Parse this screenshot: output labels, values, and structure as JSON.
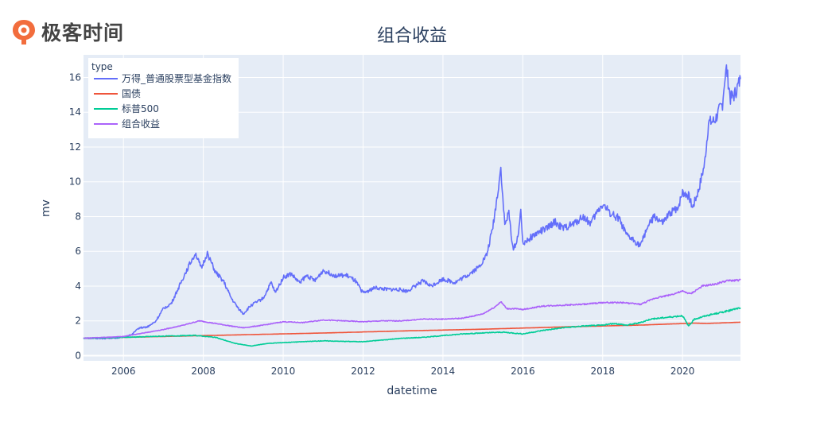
{
  "logo": {
    "text": "极客时间",
    "icon": "geektime-logo-icon",
    "color": "#f26d3d"
  },
  "chart_data": {
    "type": "line",
    "title": "组合收益",
    "xlabel": "datetime",
    "ylabel": "mv",
    "legend_title": "type",
    "legend_position": "top-left",
    "grid": true,
    "xlim": [
      2005.0,
      2021.45
    ],
    "ylim": [
      -0.3,
      17.3
    ],
    "x_ticks": [
      {
        "value": 2006,
        "label": "2006"
      },
      {
        "value": 2008,
        "label": "2008"
      },
      {
        "value": 2010,
        "label": "2010"
      },
      {
        "value": 2012,
        "label": "2012"
      },
      {
        "value": 2014,
        "label": "2014"
      },
      {
        "value": 2016,
        "label": "2016"
      },
      {
        "value": 2018,
        "label": "2018"
      },
      {
        "value": 2020,
        "label": "2020"
      }
    ],
    "y_ticks": [
      {
        "value": 0,
        "label": "0"
      },
      {
        "value": 2,
        "label": "2"
      },
      {
        "value": 4,
        "label": "4"
      },
      {
        "value": 6,
        "label": "6"
      },
      {
        "value": 8,
        "label": "8"
      },
      {
        "value": 10,
        "label": "10"
      },
      {
        "value": 12,
        "label": "12"
      },
      {
        "value": 14,
        "label": "14"
      },
      {
        "value": 16,
        "label": "16"
      }
    ],
    "series": [
      {
        "name": "万得_普通股票型基金指数",
        "color": "#636efa",
        "points": [
          [
            2005.0,
            1.0
          ],
          [
            2005.5,
            0.98
          ],
          [
            2005.9,
            1.02
          ],
          [
            2006.2,
            1.2
          ],
          [
            2006.4,
            1.6
          ],
          [
            2006.6,
            1.65
          ],
          [
            2006.8,
            1.95
          ],
          [
            2007.0,
            2.7
          ],
          [
            2007.2,
            3.0
          ],
          [
            2007.4,
            4.0
          ],
          [
            2007.6,
            5.0
          ],
          [
            2007.8,
            5.9
          ],
          [
            2007.95,
            5.0
          ],
          [
            2008.1,
            5.9
          ],
          [
            2008.3,
            4.8
          ],
          [
            2008.5,
            4.3
          ],
          [
            2008.7,
            3.3
          ],
          [
            2008.85,
            2.8
          ],
          [
            2009.0,
            2.4
          ],
          [
            2009.2,
            2.9
          ],
          [
            2009.5,
            3.3
          ],
          [
            2009.7,
            4.2
          ],
          [
            2009.8,
            3.6
          ],
          [
            2010.0,
            4.5
          ],
          [
            2010.2,
            4.7
          ],
          [
            2010.4,
            4.2
          ],
          [
            2010.6,
            4.6
          ],
          [
            2010.8,
            4.3
          ],
          [
            2011.0,
            4.9
          ],
          [
            2011.3,
            4.6
          ],
          [
            2011.6,
            4.6
          ],
          [
            2011.8,
            4.3
          ],
          [
            2012.0,
            3.6
          ],
          [
            2012.3,
            3.9
          ],
          [
            2012.6,
            3.8
          ],
          [
            2012.9,
            3.8
          ],
          [
            2013.1,
            3.7
          ],
          [
            2013.3,
            4.0
          ],
          [
            2013.5,
            4.3
          ],
          [
            2013.7,
            4.0
          ],
          [
            2014.0,
            4.4
          ],
          [
            2014.3,
            4.2
          ],
          [
            2014.6,
            4.6
          ],
          [
            2014.9,
            5.1
          ],
          [
            2015.1,
            5.8
          ],
          [
            2015.25,
            7.4
          ],
          [
            2015.35,
            9.0
          ],
          [
            2015.45,
            10.8
          ],
          [
            2015.5,
            9.0
          ],
          [
            2015.55,
            7.5
          ],
          [
            2015.65,
            8.2
          ],
          [
            2015.75,
            6.2
          ],
          [
            2015.85,
            6.5
          ],
          [
            2015.95,
            8.2
          ],
          [
            2016.0,
            6.5
          ],
          [
            2016.2,
            6.8
          ],
          [
            2016.4,
            7.1
          ],
          [
            2016.6,
            7.3
          ],
          [
            2016.8,
            7.7
          ],
          [
            2017.0,
            7.3
          ],
          [
            2017.3,
            7.6
          ],
          [
            2017.5,
            8.0
          ],
          [
            2017.7,
            7.6
          ],
          [
            2017.9,
            8.4
          ],
          [
            2018.0,
            8.7
          ],
          [
            2018.2,
            8.2
          ],
          [
            2018.4,
            7.9
          ],
          [
            2018.6,
            6.9
          ],
          [
            2018.8,
            6.6
          ],
          [
            2018.95,
            6.3
          ],
          [
            2019.1,
            7.3
          ],
          [
            2019.3,
            8.0
          ],
          [
            2019.5,
            7.6
          ],
          [
            2019.7,
            8.2
          ],
          [
            2019.9,
            8.6
          ],
          [
            2020.0,
            9.4
          ],
          [
            2020.15,
            9.2
          ],
          [
            2020.25,
            8.5
          ],
          [
            2020.4,
            9.5
          ],
          [
            2020.55,
            11.0
          ],
          [
            2020.65,
            13.4
          ],
          [
            2020.8,
            13.5
          ],
          [
            2020.9,
            14.0
          ],
          [
            2021.0,
            14.5
          ],
          [
            2021.05,
            15.8
          ],
          [
            2021.1,
            16.5
          ],
          [
            2021.2,
            14.8
          ],
          [
            2021.3,
            15.0
          ],
          [
            2021.45,
            15.9
          ]
        ]
      },
      {
        "name": "国债",
        "color": "#ef553b",
        "points": [
          [
            2005.0,
            1.0
          ],
          [
            2007.0,
            1.1
          ],
          [
            2009.0,
            1.2
          ],
          [
            2011.0,
            1.3
          ],
          [
            2013.0,
            1.42
          ],
          [
            2015.0,
            1.52
          ],
          [
            2017.0,
            1.65
          ],
          [
            2019.0,
            1.76
          ],
          [
            2020.3,
            1.87
          ],
          [
            2020.6,
            1.85
          ],
          [
            2021.45,
            1.92
          ]
        ]
      },
      {
        "name": "标普500",
        "color": "#00cc96",
        "points": [
          [
            2005.0,
            1.0
          ],
          [
            2006.0,
            1.05
          ],
          [
            2007.0,
            1.12
          ],
          [
            2007.8,
            1.16
          ],
          [
            2008.3,
            1.05
          ],
          [
            2008.8,
            0.7
          ],
          [
            2009.2,
            0.55
          ],
          [
            2009.6,
            0.7
          ],
          [
            2010.0,
            0.75
          ],
          [
            2010.5,
            0.8
          ],
          [
            2011.0,
            0.85
          ],
          [
            2011.5,
            0.82
          ],
          [
            2012.0,
            0.8
          ],
          [
            2012.5,
            0.9
          ],
          [
            2013.0,
            1.0
          ],
          [
            2013.5,
            1.05
          ],
          [
            2014.0,
            1.15
          ],
          [
            2014.5,
            1.25
          ],
          [
            2015.0,
            1.3
          ],
          [
            2015.5,
            1.35
          ],
          [
            2016.0,
            1.25
          ],
          [
            2016.5,
            1.45
          ],
          [
            2017.0,
            1.6
          ],
          [
            2017.5,
            1.7
          ],
          [
            2018.0,
            1.75
          ],
          [
            2018.3,
            1.85
          ],
          [
            2018.6,
            1.75
          ],
          [
            2018.95,
            1.9
          ],
          [
            2019.2,
            2.1
          ],
          [
            2019.6,
            2.2
          ],
          [
            2020.0,
            2.3
          ],
          [
            2020.15,
            1.7
          ],
          [
            2020.3,
            2.1
          ],
          [
            2020.6,
            2.3
          ],
          [
            2021.0,
            2.5
          ],
          [
            2021.45,
            2.75
          ]
        ]
      },
      {
        "name": "组合收益",
        "color": "#ab63fa",
        "points": [
          [
            2005.0,
            1.0
          ],
          [
            2006.0,
            1.1
          ],
          [
            2006.5,
            1.3
          ],
          [
            2007.0,
            1.5
          ],
          [
            2007.5,
            1.75
          ],
          [
            2007.9,
            2.0
          ],
          [
            2008.3,
            1.85
          ],
          [
            2008.7,
            1.7
          ],
          [
            2009.0,
            1.6
          ],
          [
            2009.5,
            1.75
          ],
          [
            2010.0,
            1.95
          ],
          [
            2010.5,
            1.9
          ],
          [
            2011.0,
            2.05
          ],
          [
            2011.5,
            2.0
          ],
          [
            2012.0,
            1.95
          ],
          [
            2012.5,
            2.0
          ],
          [
            2013.0,
            2.0
          ],
          [
            2013.5,
            2.1
          ],
          [
            2014.0,
            2.1
          ],
          [
            2014.5,
            2.15
          ],
          [
            2015.0,
            2.4
          ],
          [
            2015.3,
            2.8
          ],
          [
            2015.45,
            3.1
          ],
          [
            2015.6,
            2.7
          ],
          [
            2015.8,
            2.7
          ],
          [
            2016.0,
            2.65
          ],
          [
            2016.5,
            2.85
          ],
          [
            2017.0,
            2.9
          ],
          [
            2017.5,
            2.95
          ],
          [
            2018.0,
            3.05
          ],
          [
            2018.5,
            3.05
          ],
          [
            2018.95,
            2.95
          ],
          [
            2019.3,
            3.3
          ],
          [
            2019.7,
            3.5
          ],
          [
            2020.0,
            3.7
          ],
          [
            2020.2,
            3.55
          ],
          [
            2020.5,
            4.0
          ],
          [
            2020.8,
            4.1
          ],
          [
            2021.1,
            4.3
          ],
          [
            2021.45,
            4.35
          ]
        ]
      }
    ]
  }
}
